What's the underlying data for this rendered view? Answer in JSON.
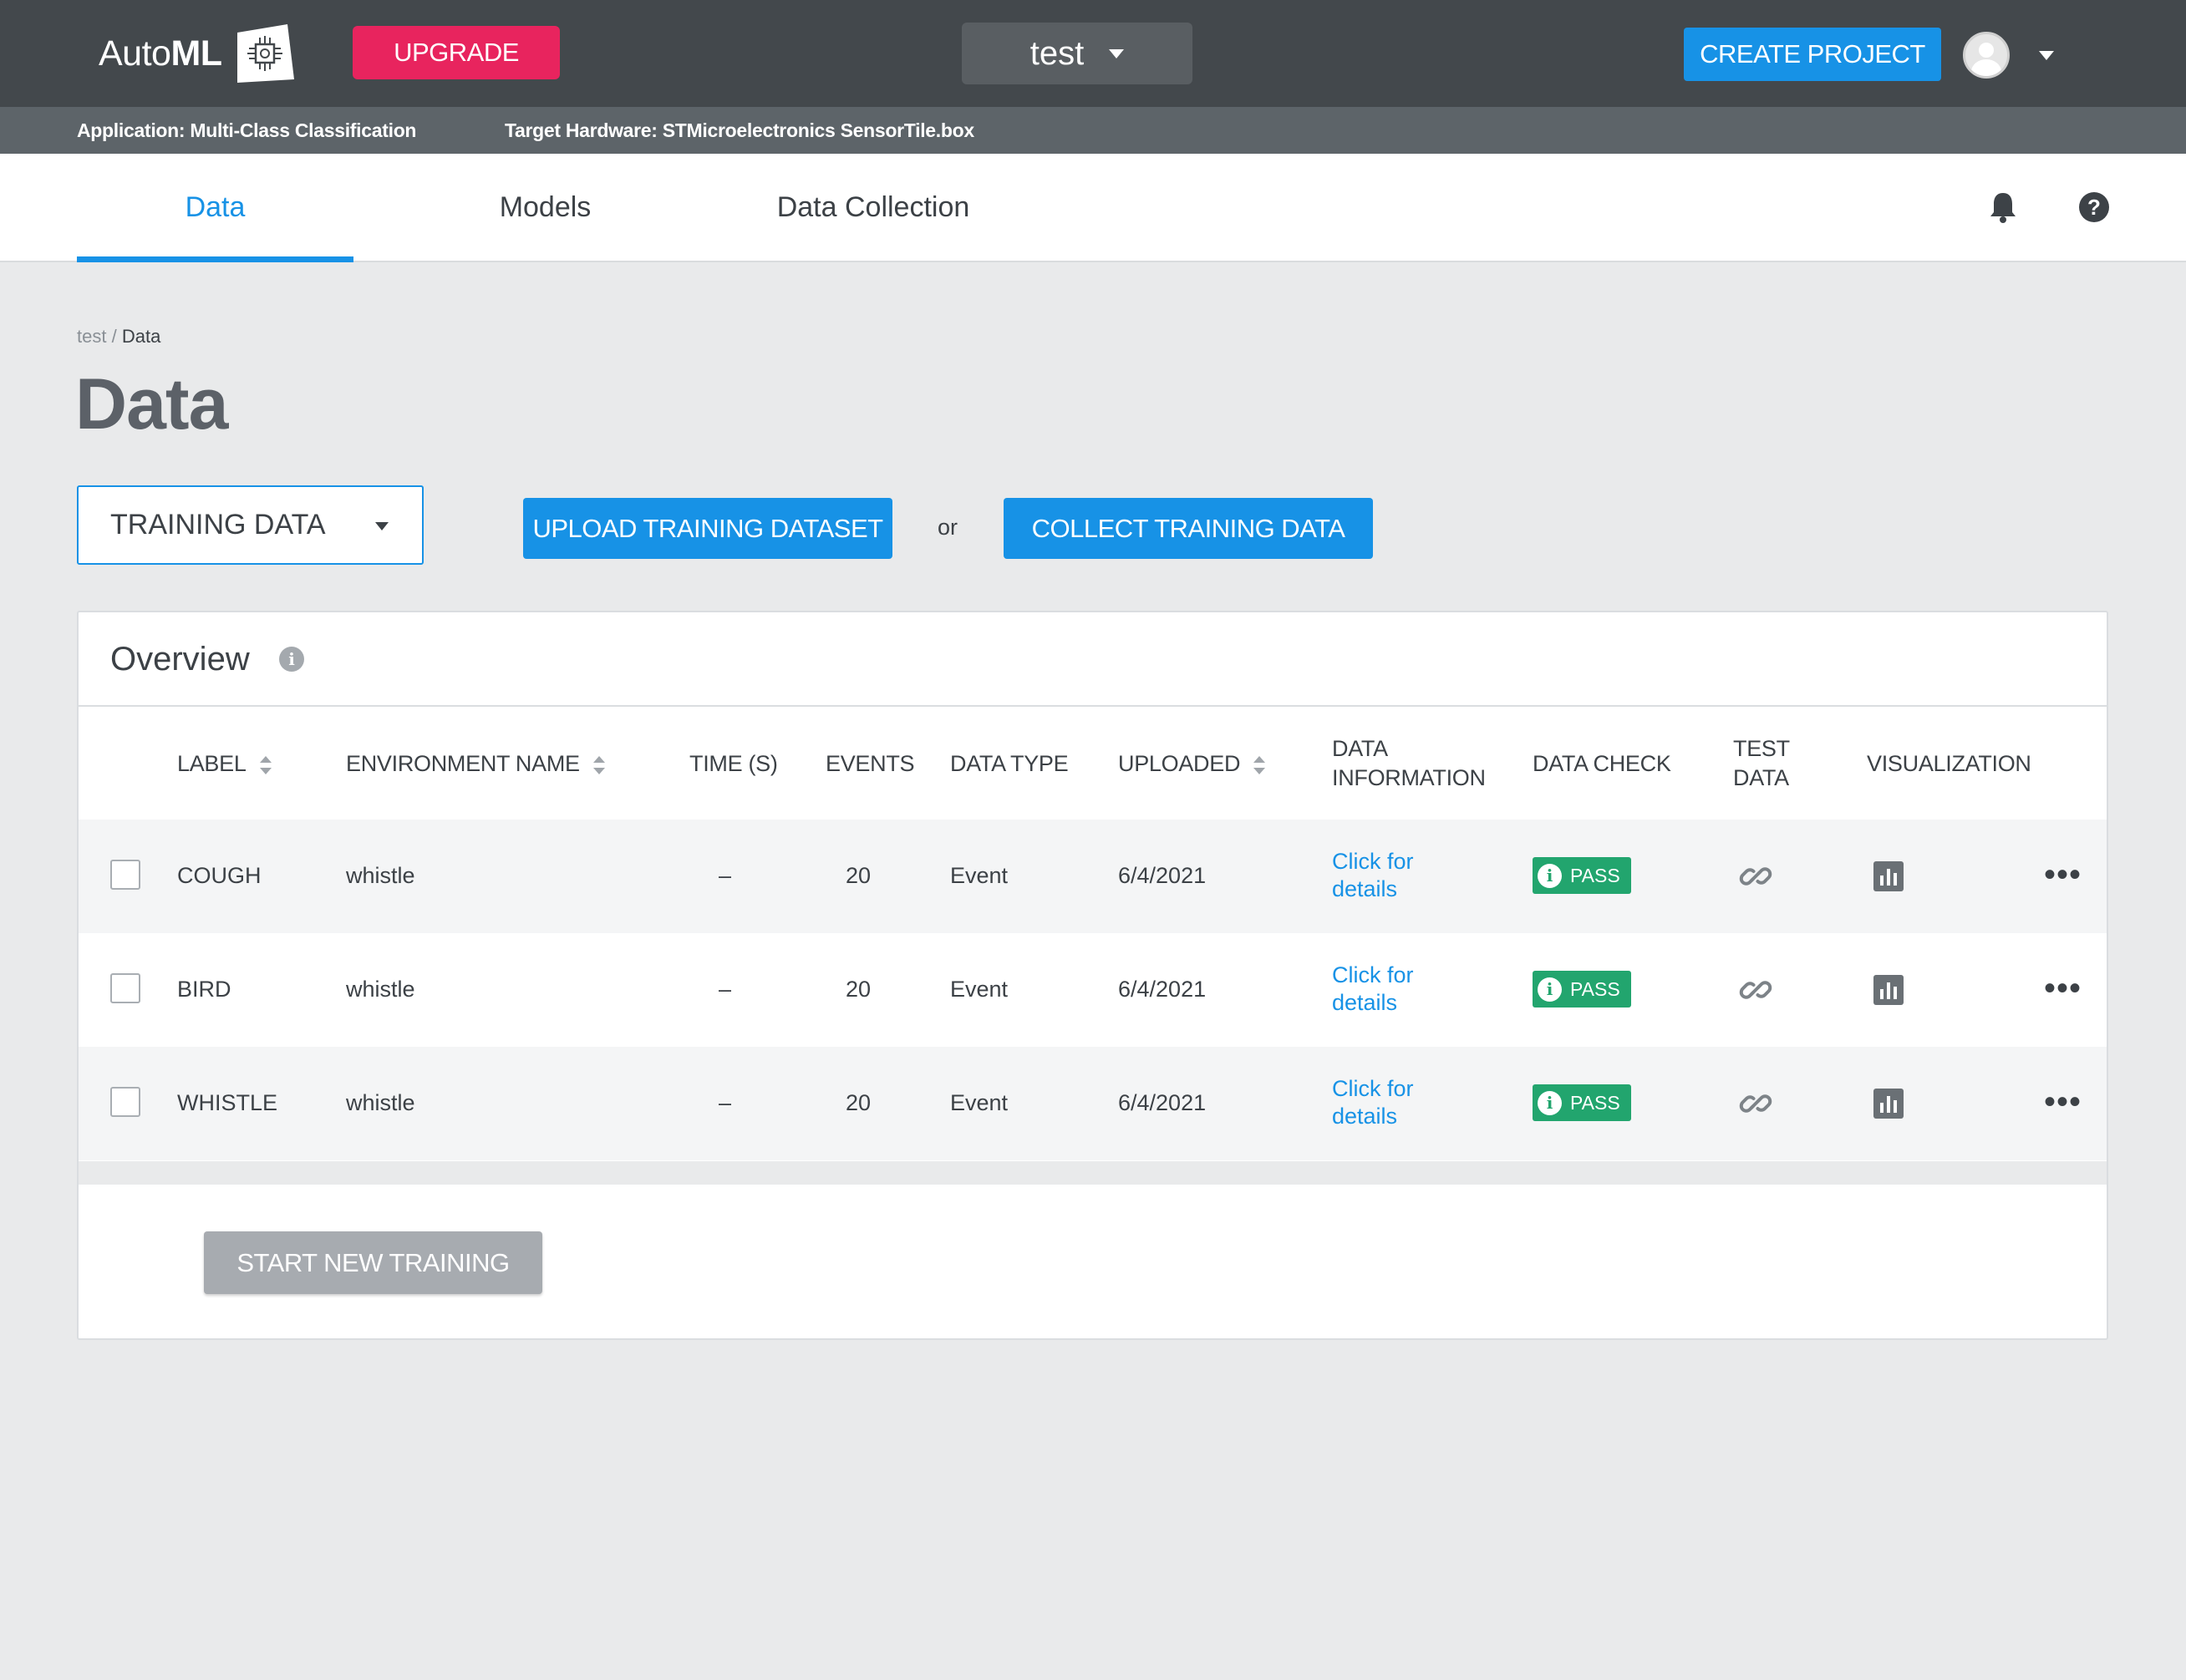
{
  "app": {
    "logo_text_regular": "Auto",
    "logo_text_bold": "ML",
    "upgrade_label": "UPGRADE",
    "project_name": "test",
    "create_project_label": "CREATE PROJECT"
  },
  "info_bar": {
    "application": "Application: Multi-Class Classification",
    "hardware": "Target Hardware: STMicroelectronics SensorTile.box"
  },
  "tabs": [
    {
      "label": "Data",
      "active": true
    },
    {
      "label": "Models",
      "active": false
    },
    {
      "label": "Data Collection",
      "active": false
    }
  ],
  "help_glyph": "?",
  "breadcrumb": {
    "root": "test",
    "separator": "/",
    "current": "Data"
  },
  "page_title": "Data",
  "toolbar": {
    "data_select_value": "TRAINING DATA",
    "upload_label": "UPLOAD TRAINING DATASET",
    "or_text": "or",
    "collect_label": "COLLECT TRAINING DATA"
  },
  "overview": {
    "title": "Overview",
    "info_glyph": "i",
    "columns": {
      "label": "LABEL",
      "environment": "ENVIRONMENT NAME",
      "time": "TIME (S)",
      "events": "EVENTS",
      "data_type": "DATA TYPE",
      "uploaded": "UPLOADED",
      "data_info_1": "DATA",
      "data_info_2": "INFORMATION",
      "data_check": "DATA CHECK",
      "test_data_1": "TEST",
      "test_data_2": "DATA",
      "visualization": "VISUALIZATION"
    },
    "rows": [
      {
        "label": "COUGH",
        "environment": "whistle",
        "time": "–",
        "events": "20",
        "data_type": "Event",
        "uploaded": "6/4/2021",
        "info_1": "Click for",
        "info_2": "details",
        "check": "PASS",
        "check_glyph": "i",
        "more": "•••"
      },
      {
        "label": "BIRD",
        "environment": "whistle",
        "time": "–",
        "events": "20",
        "data_type": "Event",
        "uploaded": "6/4/2021",
        "info_1": "Click for",
        "info_2": "details",
        "check": "PASS",
        "check_glyph": "i",
        "more": "•••"
      },
      {
        "label": "WHISTLE",
        "environment": "whistle",
        "time": "–",
        "events": "20",
        "data_type": "Event",
        "uploaded": "6/4/2021",
        "info_1": "Click for",
        "info_2": "details",
        "check": "PASS",
        "check_glyph": "i",
        "more": "•••"
      }
    ],
    "start_training_label": "START NEW TRAINING"
  },
  "icons": {
    "logo": "chip-logo-icon",
    "notifications": "bell-icon",
    "help": "help-icon",
    "test_data": "link-icon",
    "visualization": "bar-chart-icon",
    "more": "more-icon"
  },
  "colors": {
    "accent": "#1792e6",
    "upgrade": "#e8245e",
    "pass": "#22a56e",
    "topbar": "#43484c",
    "disabled_button": "#a7abb0"
  }
}
